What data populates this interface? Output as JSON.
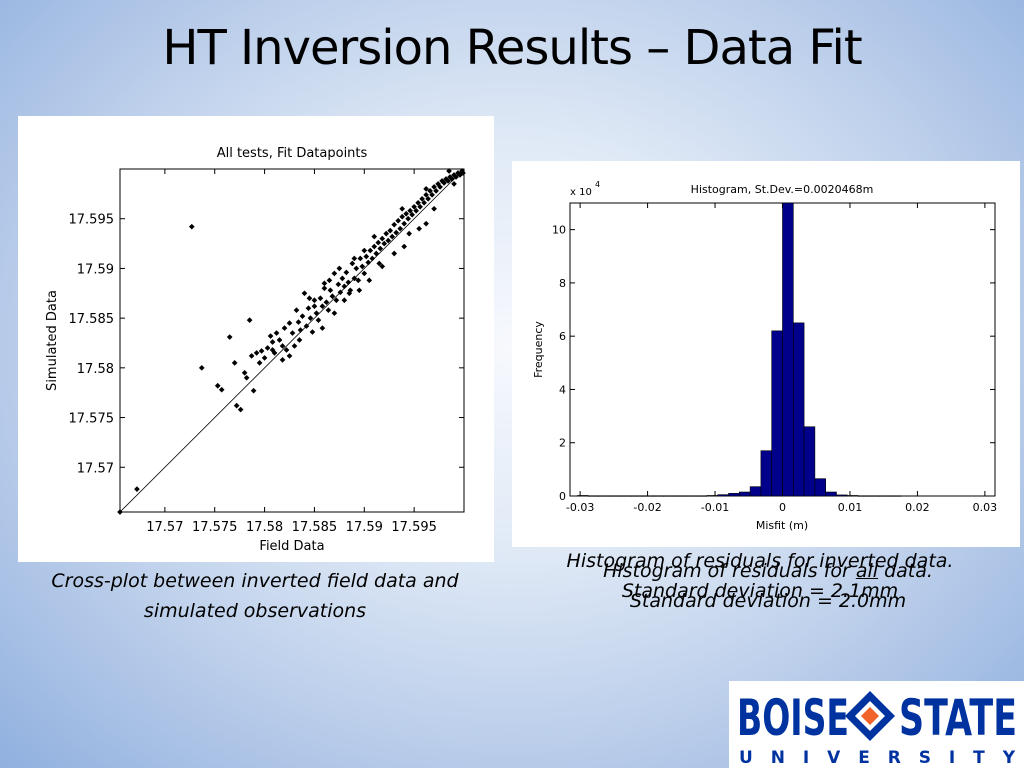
{
  "slide": {
    "title": "HT Inversion Results – Data Fit"
  },
  "captions": {
    "left_line1": "Cross-plot between inverted field data and",
    "left_line2": "simulated observations",
    "right_old_line1": "Histogram of residuals for inverted data.",
    "right_old_line2": "Standard deviation = 2.1mm",
    "right_new_line1_a": "Histogram of residuals for ",
    "right_new_line1_b": "all",
    "right_new_line1_c": " data.",
    "right_new_line2": "Standard deviation = 2.0mm"
  },
  "logo": {
    "word1": "BOISE",
    "word2": "STATE",
    "subword": "U N I V E R S I T Y",
    "brand_color": "#0033a0",
    "accent_color": "#f1632a"
  },
  "chart_data": [
    {
      "type": "scatter",
      "title": "All tests, Fit Datapoints",
      "xlabel": "Field Data",
      "ylabel": "Simulated Data",
      "xlim": [
        17.5655,
        17.6
      ],
      "ylim": [
        17.5655,
        17.6
      ],
      "xticks": [
        "17.57",
        "17.575",
        "17.58",
        "17.585",
        "17.59",
        "17.595"
      ],
      "yticks": [
        "17.57",
        "17.575",
        "17.58",
        "17.585",
        "17.59",
        "17.595"
      ],
      "reference_line": "y = x",
      "grid": false,
      "points": [
        [
          17.5655,
          17.5655
        ],
        [
          17.5672,
          17.5678
        ],
        [
          17.5727,
          17.5942
        ],
        [
          17.5737,
          17.58
        ],
        [
          17.5753,
          17.5782
        ],
        [
          17.5757,
          17.5778
        ],
        [
          17.5765,
          17.5831
        ],
        [
          17.577,
          17.5805
        ],
        [
          17.5772,
          17.5762
        ],
        [
          17.5776,
          17.5758
        ],
        [
          17.578,
          17.5795
        ],
        [
          17.5782,
          17.579
        ],
        [
          17.5785,
          17.5848
        ],
        [
          17.5787,
          17.5812
        ],
        [
          17.5789,
          17.5777
        ],
        [
          17.5792,
          17.5815
        ],
        [
          17.5795,
          17.5805
        ],
        [
          17.5797,
          17.5817
        ],
        [
          17.58,
          17.581
        ],
        [
          17.5803,
          17.582
        ],
        [
          17.5806,
          17.5832
        ],
        [
          17.5808,
          17.5826
        ],
        [
          17.581,
          17.5815
        ],
        [
          17.5812,
          17.5835
        ],
        [
          17.5815,
          17.5828
        ],
        [
          17.5818,
          17.5822
        ],
        [
          17.582,
          17.584
        ],
        [
          17.5822,
          17.5818
        ],
        [
          17.5825,
          17.5845
        ],
        [
          17.5828,
          17.5835
        ],
        [
          17.583,
          17.5822
        ],
        [
          17.5832,
          17.5858
        ],
        [
          17.5834,
          17.5846
        ],
        [
          17.5836,
          17.5838
        ],
        [
          17.5838,
          17.5852
        ],
        [
          17.584,
          17.5875
        ],
        [
          17.5842,
          17.5842
        ],
        [
          17.5844,
          17.586
        ],
        [
          17.5846,
          17.585
        ],
        [
          17.5848,
          17.5836
        ],
        [
          17.585,
          17.5868
        ],
        [
          17.5852,
          17.5855
        ],
        [
          17.5854,
          17.5848
        ],
        [
          17.5856,
          17.587
        ],
        [
          17.5858,
          17.5862
        ],
        [
          17.586,
          17.588
        ],
        [
          17.5862,
          17.5866
        ],
        [
          17.5864,
          17.5858
        ],
        [
          17.5866,
          17.5878
        ],
        [
          17.5868,
          17.5872
        ],
        [
          17.587,
          17.5895
        ],
        [
          17.5872,
          17.5868
        ],
        [
          17.5874,
          17.5884
        ],
        [
          17.5876,
          17.5876
        ],
        [
          17.5878,
          17.589
        ],
        [
          17.588,
          17.5882
        ],
        [
          17.5882,
          17.5896
        ],
        [
          17.5884,
          17.5886
        ],
        [
          17.5886,
          17.5878
        ],
        [
          17.5888,
          17.5905
        ],
        [
          17.589,
          17.589
        ],
        [
          17.5892,
          17.59
        ],
        [
          17.5894,
          17.5888
        ],
        [
          17.5896,
          17.591
        ],
        [
          17.5898,
          17.5902
        ],
        [
          17.59,
          17.5895
        ],
        [
          17.5902,
          17.5912
        ],
        [
          17.5904,
          17.5906
        ],
        [
          17.5906,
          17.5918
        ],
        [
          17.5908,
          17.591
        ],
        [
          17.591,
          17.5922
        ],
        [
          17.5912,
          17.5915
        ],
        [
          17.5914,
          17.5926
        ],
        [
          17.5916,
          17.592
        ],
        [
          17.5918,
          17.593
        ],
        [
          17.592,
          17.5925
        ],
        [
          17.5922,
          17.5935
        ],
        [
          17.5924,
          17.5928
        ],
        [
          17.5926,
          17.5938
        ],
        [
          17.5928,
          17.5932
        ],
        [
          17.593,
          17.5944
        ],
        [
          17.5932,
          17.5936
        ],
        [
          17.5934,
          17.5948
        ],
        [
          17.5936,
          17.594
        ],
        [
          17.5938,
          17.5952
        ],
        [
          17.594,
          17.5945
        ],
        [
          17.5942,
          17.5955
        ],
        [
          17.5944,
          17.595
        ],
        [
          17.5946,
          17.5958
        ],
        [
          17.5948,
          17.5954
        ],
        [
          17.595,
          17.5962
        ],
        [
          17.5952,
          17.5958
        ],
        [
          17.5954,
          17.5966
        ],
        [
          17.5956,
          17.5962
        ],
        [
          17.5958,
          17.597
        ],
        [
          17.596,
          17.5966
        ],
        [
          17.5962,
          17.5974
        ],
        [
          17.5964,
          17.597
        ],
        [
          17.5966,
          17.5978
        ],
        [
          17.5968,
          17.5974
        ],
        [
          17.597,
          17.5982
        ],
        [
          17.5972,
          17.5978
        ],
        [
          17.5974,
          17.5985
        ],
        [
          17.5976,
          17.5982
        ],
        [
          17.5978,
          17.5988
        ],
        [
          17.598,
          17.5986
        ],
        [
          17.5982,
          17.599
        ],
        [
          17.5984,
          17.5988
        ],
        [
          17.5986,
          17.5992
        ],
        [
          17.5988,
          17.599
        ],
        [
          17.599,
          17.5994
        ],
        [
          17.5992,
          17.5992
        ],
        [
          17.5994,
          17.5996
        ],
        [
          17.5996,
          17.5994
        ],
        [
          17.5998,
          17.5998
        ],
        [
          17.5999,
          17.5996
        ],
        [
          17.5825,
          17.5812
        ],
        [
          17.5858,
          17.584
        ],
        [
          17.588,
          17.5868
        ],
        [
          17.5905,
          17.5888
        ],
        [
          17.5918,
          17.5902
        ],
        [
          17.594,
          17.5922
        ],
        [
          17.5962,
          17.5945
        ],
        [
          17.587,
          17.5855
        ],
        [
          17.5835,
          17.5828
        ],
        [
          17.5895,
          17.5878
        ],
        [
          17.593,
          17.5915
        ],
        [
          17.5955,
          17.594
        ],
        [
          17.5845,
          17.587
        ],
        [
          17.5865,
          17.5888
        ],
        [
          17.589,
          17.591
        ],
        [
          17.591,
          17.5932
        ],
        [
          17.5938,
          17.596
        ],
        [
          17.5962,
          17.598
        ],
        [
          17.5985,
          17.5998
        ],
        [
          17.585,
          17.5862
        ],
        [
          17.5875,
          17.59
        ],
        [
          17.59,
          17.5918
        ],
        [
          17.5808,
          17.5818
        ],
        [
          17.5818,
          17.5808
        ],
        [
          17.586,
          17.5885
        ],
        [
          17.5885,
          17.5875
        ],
        [
          17.5915,
          17.5905
        ],
        [
          17.5945,
          17.5935
        ],
        [
          17.597,
          17.596
        ],
        [
          17.599,
          17.5985
        ]
      ]
    },
    {
      "type": "bar",
      "title": "Histogram, St.Dev.=0.0020468m",
      "xlabel": "Misfit (m)",
      "ylabel": "Frequency",
      "y_multiplier_label": "x 10",
      "y_multiplier_exp": "4",
      "xlim": [
        -0.0315,
        0.0315
      ],
      "ylim": [
        0,
        11
      ],
      "xticks": [
        "-0.03",
        "-0.02",
        "-0.01",
        "0",
        "0.01",
        "0.02",
        "0.03"
      ],
      "yticks": [
        "0",
        "2",
        "4",
        "6",
        "8",
        "10"
      ],
      "bar_color": "#00008b",
      "bin_width": 0.0016,
      "bin_centers": [
        -0.0296,
        -0.028,
        -0.0264,
        -0.0248,
        -0.0232,
        -0.0216,
        -0.02,
        -0.0184,
        -0.0168,
        -0.0152,
        -0.0136,
        -0.012,
        -0.0104,
        -0.0088,
        -0.0072,
        -0.0056,
        -0.004,
        -0.0024,
        -0.0008,
        0.0008,
        0.0024,
        0.004,
        0.0056,
        0.0072,
        0.0088,
        0.0104,
        0.012,
        0.0136,
        0.0152,
        0.0168
      ],
      "values": [
        0.02,
        0.01,
        0.01,
        0.01,
        0.01,
        0.01,
        0.01,
        0.01,
        0.01,
        0.01,
        0.01,
        0.01,
        0.02,
        0.05,
        0.1,
        0.15,
        0.35,
        1.7,
        6.2,
        11.0,
        6.5,
        2.6,
        0.65,
        0.15,
        0.04,
        0.02,
        0.01,
        0.01,
        0.01,
        0.01
      ]
    }
  ]
}
